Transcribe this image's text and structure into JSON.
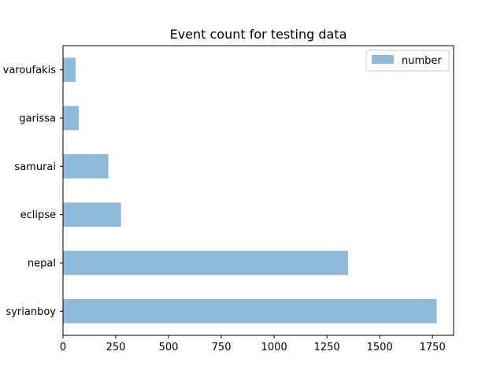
{
  "chart_data": {
    "type": "bar",
    "orientation": "horizontal",
    "title": "Event count for testing data",
    "xlabel": "",
    "ylabel": "",
    "categories": [
      "syrianboy",
      "nepal",
      "eclipse",
      "samurai",
      "garissa",
      "varoufakis"
    ],
    "series": [
      {
        "name": "number",
        "values": [
          1770,
          1350,
          275,
          215,
          75,
          60
        ],
        "color": "#8fbad9"
      }
    ],
    "xlim": [
      0,
      1850
    ],
    "xticks": [
      0,
      250,
      500,
      750,
      1000,
      1250,
      1500,
      1750
    ],
    "grid": false,
    "legend_position": "top-right"
  }
}
